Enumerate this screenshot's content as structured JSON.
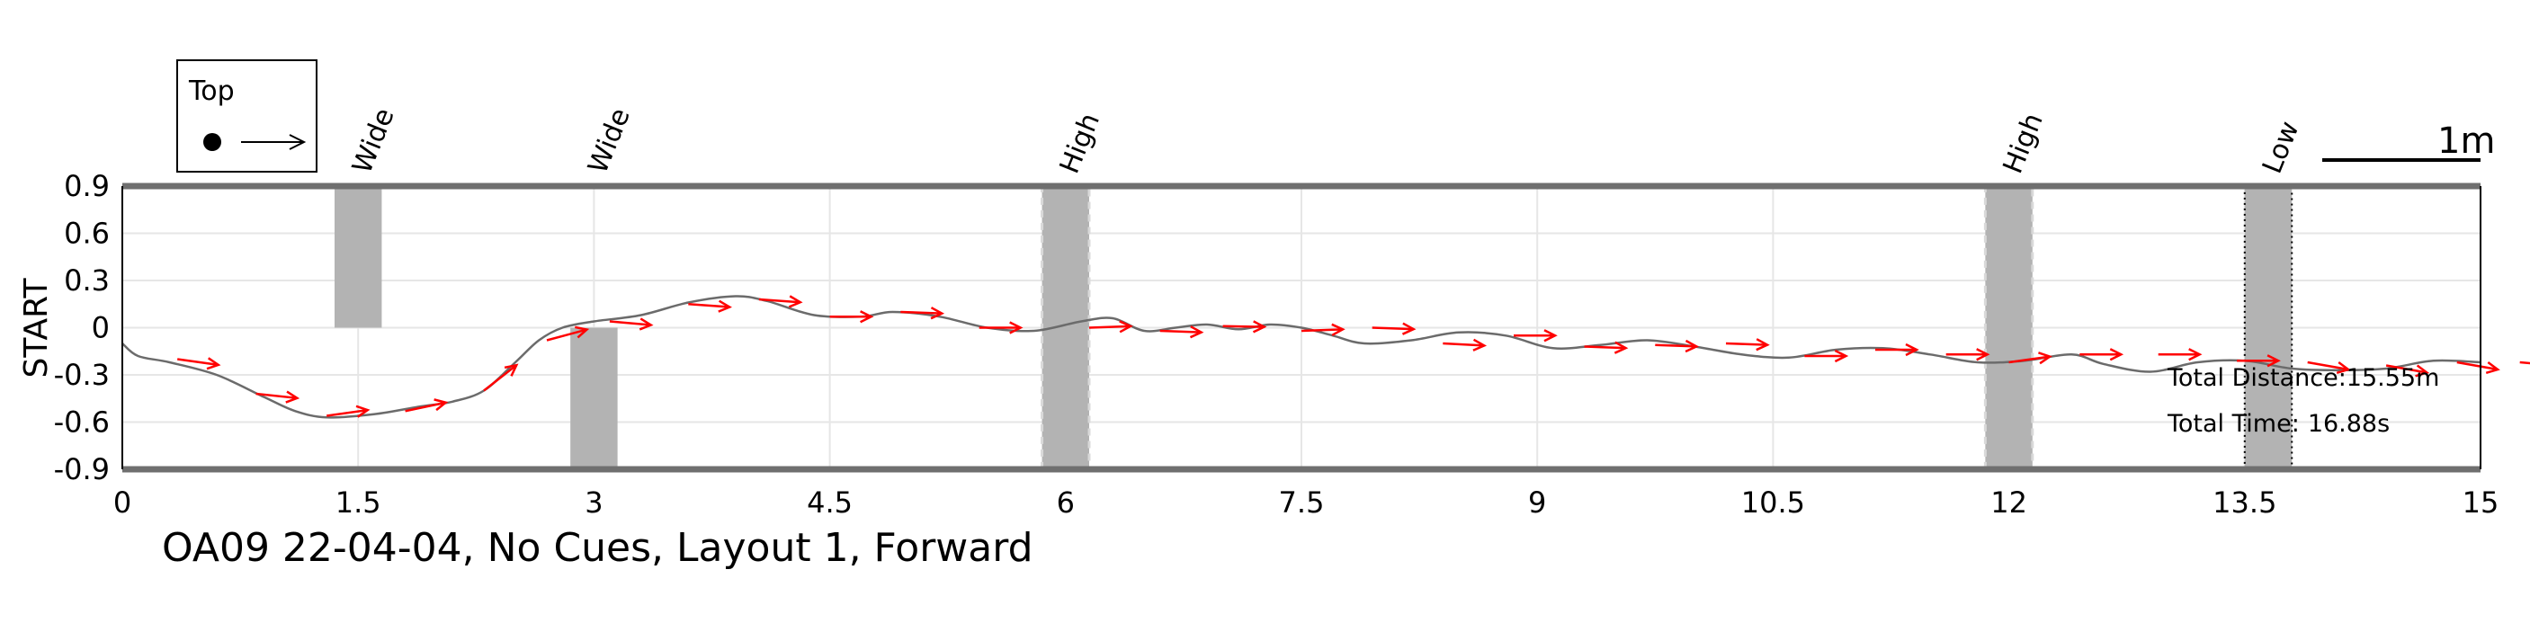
{
  "chart_data": {
    "type": "line",
    "title": "OA09 22-04-04, No Cues, Layout 1, Forward",
    "ylabel": "START",
    "xlabel": "",
    "xlim": [
      0,
      15
    ],
    "ylim": [
      -0.9,
      0.9
    ],
    "x_ticks": [
      "0",
      "1.5",
      "3",
      "4.5",
      "6",
      "7.5",
      "9",
      "10.5",
      "12",
      "13.5",
      "15"
    ],
    "y_ticks": [
      "0.9",
      "0.6",
      "0.3",
      "0",
      "-0.3",
      "-0.6",
      "-0.9"
    ],
    "grid": true,
    "legend": {
      "title": "Top",
      "placement": "top-left"
    },
    "scale_bar_label": "1m",
    "obstacles": [
      {
        "label": "Wide",
        "x": [
          1.35,
          1.65
        ],
        "y": [
          0,
          0.9
        ],
        "style": "solid"
      },
      {
        "label": "Wide",
        "x": [
          2.85,
          3.15
        ],
        "y": [
          -0.9,
          0
        ],
        "style": "solid"
      },
      {
        "label": "High",
        "x": [
          5.85,
          6.15
        ],
        "y": [
          -0.9,
          0.9
        ],
        "style": "dashed"
      },
      {
        "label": "High",
        "x": [
          11.85,
          12.15
        ],
        "y": [
          -0.9,
          0.9
        ],
        "style": "dashed"
      },
      {
        "label": "Low",
        "x": [
          13.5,
          13.8
        ],
        "y": [
          -0.9,
          0.9
        ],
        "style": "dotted"
      }
    ],
    "path": {
      "x": [
        0,
        0.1,
        0.3,
        0.6,
        0.9,
        1.1,
        1.3,
        1.6,
        1.9,
        2.1,
        2.3,
        2.5,
        2.65,
        2.8,
        3.0,
        3.3,
        3.6,
        3.9,
        4.1,
        4.4,
        4.7,
        4.9,
        5.2,
        5.5,
        5.8,
        6.1,
        6.3,
        6.5,
        6.7,
        6.9,
        7.1,
        7.3,
        7.5,
        7.7,
        7.9,
        8.2,
        8.5,
        8.8,
        9.1,
        9.4,
        9.7,
        10.0,
        10.3,
        10.6,
        10.9,
        11.2,
        11.5,
        11.8,
        12.1,
        12.4,
        12.6,
        12.9,
        13.2,
        13.5,
        13.8,
        14.1,
        14.4,
        14.7,
        15.0
      ],
      "y": [
        -0.1,
        -0.18,
        -0.22,
        -0.3,
        -0.44,
        -0.53,
        -0.57,
        -0.55,
        -0.5,
        -0.47,
        -0.4,
        -0.22,
        -0.08,
        0.0,
        0.04,
        0.08,
        0.16,
        0.2,
        0.17,
        0.08,
        0.07,
        0.1,
        0.07,
        0.0,
        -0.02,
        0.04,
        0.06,
        -0.02,
        0.0,
        0.02,
        -0.01,
        0.02,
        0.0,
        -0.05,
        -0.1,
        -0.08,
        -0.03,
        -0.05,
        -0.13,
        -0.11,
        -0.08,
        -0.12,
        -0.17,
        -0.19,
        -0.14,
        -0.13,
        -0.17,
        -0.22,
        -0.21,
        -0.17,
        -0.23,
        -0.28,
        -0.22,
        -0.21,
        -0.26,
        -0.27,
        -0.26,
        -0.21,
        -0.22
      ]
    },
    "heading_arrows": [
      {
        "x": 0.35,
        "y": -0.2,
        "angle_deg": 8
      },
      {
        "x": 0.85,
        "y": -0.42,
        "angle_deg": 6
      },
      {
        "x": 1.3,
        "y": -0.56,
        "angle_deg": -8
      },
      {
        "x": 1.8,
        "y": -0.53,
        "angle_deg": -12
      },
      {
        "x": 2.3,
        "y": -0.4,
        "angle_deg": -38
      },
      {
        "x": 2.7,
        "y": -0.08,
        "angle_deg": -15
      },
      {
        "x": 3.1,
        "y": 0.04,
        "angle_deg": 5
      },
      {
        "x": 3.6,
        "y": 0.15,
        "angle_deg": 4
      },
      {
        "x": 4.05,
        "y": 0.18,
        "angle_deg": 4
      },
      {
        "x": 4.5,
        "y": 0.07,
        "angle_deg": 0
      },
      {
        "x": 4.95,
        "y": 0.1,
        "angle_deg": 2
      },
      {
        "x": 5.45,
        "y": 0.0,
        "angle_deg": 0
      },
      {
        "x": 6.15,
        "y": 0.0,
        "angle_deg": -2
      },
      {
        "x": 6.6,
        "y": -0.02,
        "angle_deg": 2
      },
      {
        "x": 7.0,
        "y": 0.01,
        "angle_deg": 1
      },
      {
        "x": 7.5,
        "y": -0.02,
        "angle_deg": -2
      },
      {
        "x": 7.95,
        "y": 0.0,
        "angle_deg": 2
      },
      {
        "x": 8.4,
        "y": -0.1,
        "angle_deg": 3
      },
      {
        "x": 8.85,
        "y": -0.05,
        "angle_deg": 0
      },
      {
        "x": 9.3,
        "y": -0.12,
        "angle_deg": 2
      },
      {
        "x": 9.75,
        "y": -0.11,
        "angle_deg": 2
      },
      {
        "x": 10.2,
        "y": -0.1,
        "angle_deg": 2
      },
      {
        "x": 10.7,
        "y": -0.18,
        "angle_deg": 0
      },
      {
        "x": 11.15,
        "y": -0.14,
        "angle_deg": 0
      },
      {
        "x": 11.6,
        "y": -0.17,
        "angle_deg": 0
      },
      {
        "x": 12.0,
        "y": -0.22,
        "angle_deg": -8
      },
      {
        "x": 12.45,
        "y": -0.17,
        "angle_deg": 0
      },
      {
        "x": 12.95,
        "y": -0.17,
        "angle_deg": 0
      },
      {
        "x": 13.45,
        "y": -0.21,
        "angle_deg": 0
      },
      {
        "x": 13.9,
        "y": -0.22,
        "angle_deg": 10
      },
      {
        "x": 14.4,
        "y": -0.24,
        "angle_deg": 10
      },
      {
        "x": 14.85,
        "y": -0.22,
        "angle_deg": 10
      },
      {
        "x": 15.25,
        "y": -0.22,
        "angle_deg": 5
      }
    ],
    "annotations": {
      "distance_label": "Total Distance:",
      "distance_value": "15.55m",
      "time_label": "Total Time:",
      "time_value": "16.88s"
    },
    "colors": {
      "path": "#6b6b6b",
      "arrows": "#ff0000",
      "obstacles": "#b3b3b3",
      "walls": "#6f6f6f",
      "grid": "#e6e6e6"
    }
  }
}
